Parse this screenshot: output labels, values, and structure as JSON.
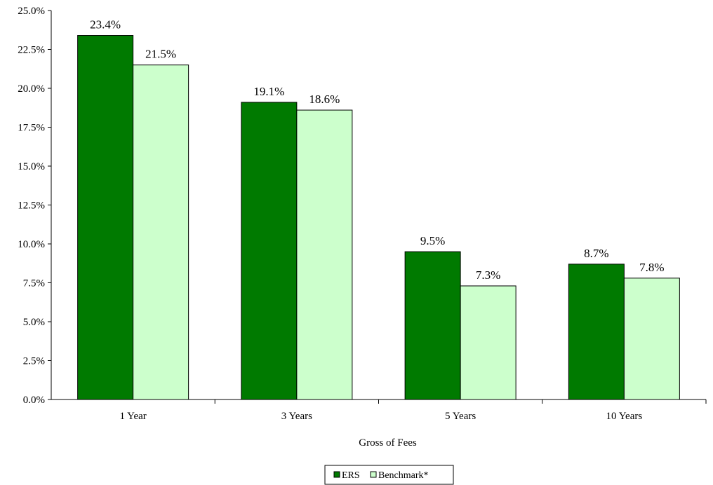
{
  "chart_data": {
    "type": "bar",
    "categories": [
      "1 Year",
      "3 Years",
      "5 Years",
      "10 Years"
    ],
    "series": [
      {
        "name": "ERS",
        "values": [
          23.4,
          19.1,
          9.5,
          8.7
        ],
        "color": "#007a00"
      },
      {
        "name": "Benchmark*",
        "values": [
          21.5,
          18.6,
          7.3,
          7.8
        ],
        "color": "#ccffcc"
      }
    ],
    "data_labels": [
      [
        "23.4%",
        "19.1%",
        "9.5%",
        "8.7%"
      ],
      [
        "21.5%",
        "18.6%",
        "7.3%",
        "7.8%"
      ]
    ],
    "xlabel": "Gross of Fees",
    "ylabel": "",
    "ylim": [
      0,
      25
    ],
    "yticks": [
      "0.0%",
      "2.5%",
      "5.0%",
      "7.5%",
      "10.0%",
      "12.5%",
      "15.0%",
      "17.5%",
      "20.0%",
      "22.5%",
      "25.0%"
    ],
    "grid": false,
    "legend_position": "bottom"
  }
}
